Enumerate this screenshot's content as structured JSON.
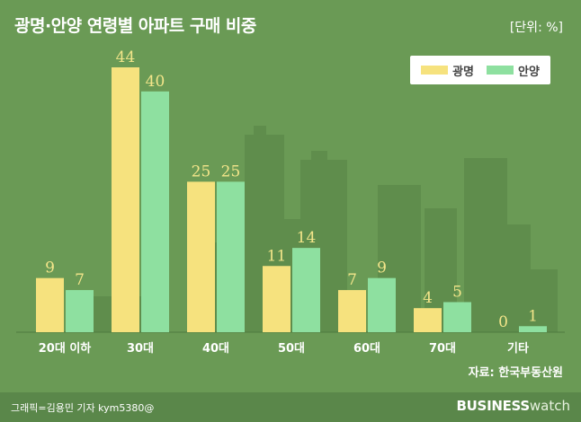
{
  "title": "광명·안양 연령별 아파트 구매 비중",
  "unit_label": "[단위: %]",
  "source": "자료: 한국부동산원",
  "credit": "그래픽=김용민 기자 kym5380@",
  "brand": {
    "bold": "BUSINESS",
    "light": "watch"
  },
  "colors": {
    "background": "#6a9a55",
    "gwangmyeong": "#f6e27e",
    "anyang": "#8ee0a0",
    "value_label": "#f3e58a"
  },
  "chart_data": {
    "type": "bar",
    "title": "광명·안양 연령별 아파트 구매 비중",
    "categories": [
      "20대 이하",
      "30대",
      "40대",
      "50대",
      "60대",
      "70대",
      "기타"
    ],
    "series": [
      {
        "name": "광명",
        "values": [
          9,
          44,
          25,
          11,
          7,
          4,
          0
        ]
      },
      {
        "name": "안양",
        "values": [
          7,
          40,
          25,
          14,
          9,
          5,
          1
        ]
      }
    ],
    "ylim": [
      0,
      44
    ],
    "legend": "top-right",
    "grid": false
  }
}
